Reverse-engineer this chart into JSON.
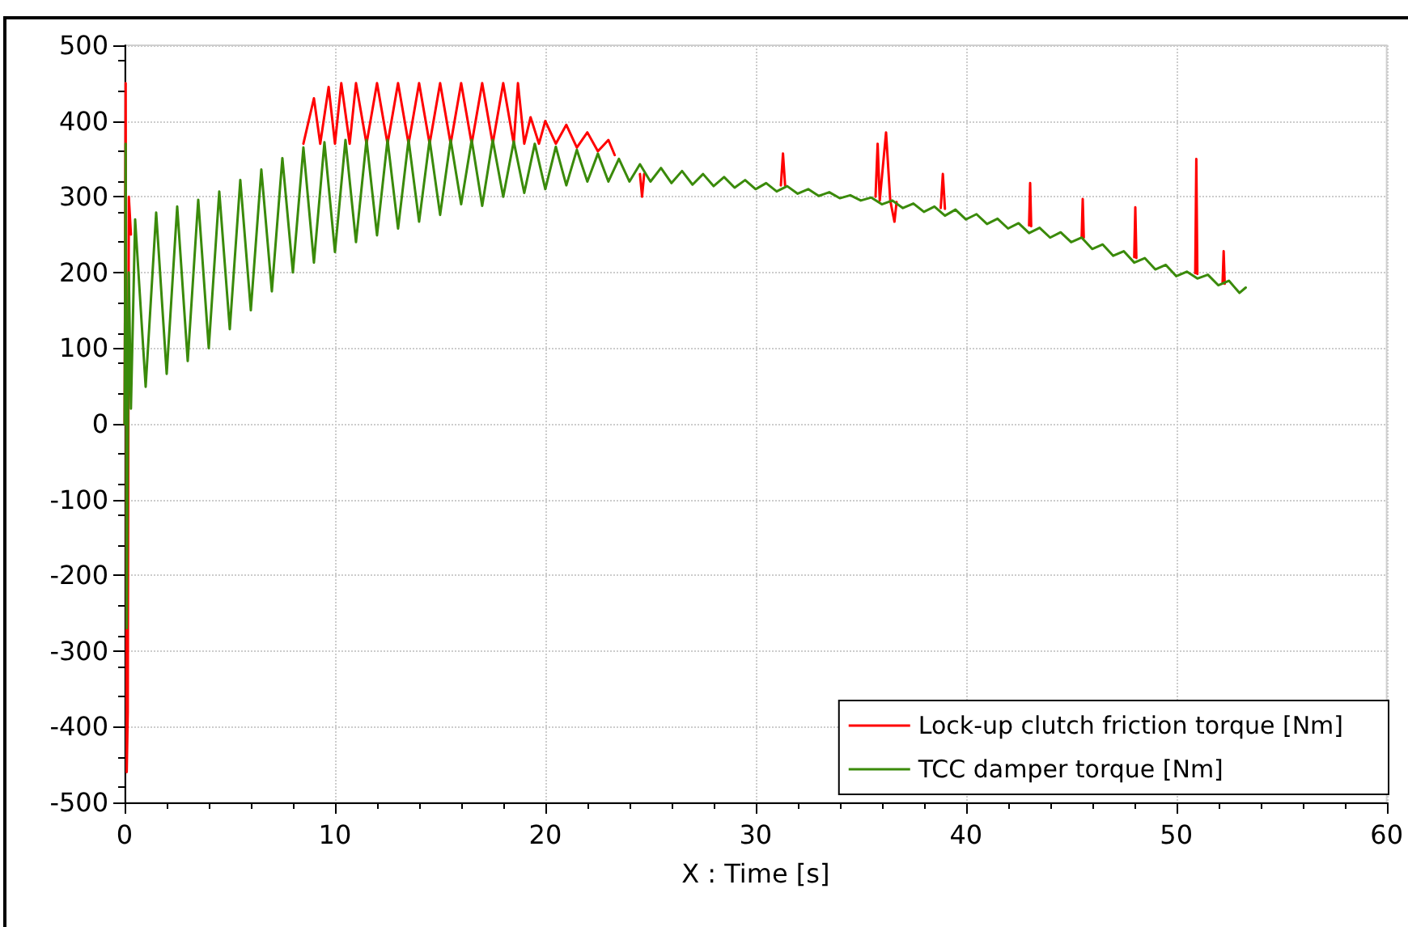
{
  "chart_data": {
    "type": "line",
    "xlabel": "X : Time [s]",
    "xlim": [
      0,
      60
    ],
    "xticks": [
      0,
      10,
      20,
      30,
      40,
      50,
      60
    ],
    "ylim": [
      -500,
      500
    ],
    "yticks": [
      -500,
      -400,
      -300,
      -200,
      -100,
      0,
      100,
      200,
      300,
      400,
      500
    ],
    "grid": true,
    "legend": "bottom right",
    "marker": "none",
    "line_style": "solid",
    "series": [
      {
        "name": "Lock-up clutch friction torque [Nm]",
        "color": "#ff0000",
        "x": [
          0,
          0.05,
          0.1,
          0.15,
          0.2,
          0.3,
          4,
          8.5,
          9,
          9.3,
          9.7,
          10,
          10.3,
          10.7,
          11,
          11.5,
          12,
          12.5,
          13,
          13.5,
          14,
          14.5,
          15,
          15.5,
          16,
          16.5,
          17,
          17.5,
          18,
          18.5,
          18.7,
          19,
          19.3,
          19.7,
          20,
          20.5,
          21,
          21.5,
          22,
          22.5,
          23,
          23.3,
          24,
          24.5,
          24.6,
          24.7,
          28,
          31.2,
          31.3,
          31.4,
          33,
          35.7,
          35.8,
          35.9,
          36.2,
          36.4,
          36.6,
          36.7,
          38,
          38.8,
          38.9,
          39,
          41,
          43,
          43.05,
          43.1,
          44,
          45.5,
          45.55,
          45.6,
          47,
          48,
          48.05,
          48.1,
          49,
          50.9,
          50.95,
          51,
          51.5,
          52.2,
          52.25,
          52.3
        ],
        "values": [
          0,
          450,
          -460,
          -380,
          300,
          250,
          null,
          370,
          430,
          370,
          445,
          370,
          450,
          370,
          450,
          370,
          450,
          370,
          450,
          370,
          450,
          370,
          450,
          370,
          450,
          370,
          450,
          370,
          450,
          370,
          450,
          370,
          405,
          370,
          400,
          370,
          395,
          365,
          385,
          360,
          375,
          355,
          null,
          330,
          300,
          330,
          null,
          315,
          357,
          315,
          null,
          300,
          370,
          295,
          385,
          295,
          267,
          293,
          null,
          285,
          330,
          284,
          null,
          262,
          318,
          261,
          null,
          247,
          297,
          246,
          null,
          220,
          286,
          219,
          null,
          199,
          350,
          198,
          null,
          186,
          228,
          185
        ]
      },
      {
        "name": "TCC damper torque [Nm]",
        "color": "#3a8a0a",
        "x": [
          0,
          0.05,
          0.1,
          0.2,
          0.3,
          0.5,
          1,
          1.5,
          2,
          2.5,
          3,
          3.5,
          4,
          4.5,
          5,
          5.5,
          6,
          6.5,
          7,
          7.5,
          8,
          8.5,
          9,
          9.5,
          10,
          10.5,
          11,
          11.5,
          12,
          12.5,
          13,
          13.5,
          14,
          14.5,
          15,
          15.5,
          16,
          16.5,
          17,
          17.5,
          18,
          18.5,
          19,
          19.5,
          20,
          20.5,
          21,
          21.5,
          22,
          22.5,
          23,
          23.5,
          24,
          24.5,
          25,
          25.5,
          26,
          26.5,
          27,
          27.5,
          28,
          28.5,
          29,
          29.5,
          30,
          30.5,
          31,
          31.5,
          32,
          32.5,
          33,
          33.5,
          34,
          34.5,
          35,
          35.5,
          36,
          36.5,
          37,
          37.5,
          38,
          38.5,
          39,
          39.5,
          40,
          40.5,
          41,
          41.5,
          42,
          42.5,
          43,
          43.5,
          44,
          44.5,
          45,
          45.5,
          46,
          46.5,
          47,
          47.5,
          48,
          48.5,
          49,
          49.5,
          50,
          50.5,
          51,
          51.5,
          52,
          52.5,
          53,
          53.3
        ],
        "values": [
          0,
          370,
          -270,
          200,
          20,
          270,
          49,
          279,
          66,
          287,
          83,
          296,
          100,
          307,
          125,
          322,
          150,
          336,
          175,
          351,
          200,
          365,
          213,
          372,
          227,
          375,
          240,
          375,
          249,
          375,
          258,
          375,
          267,
          375,
          276,
          375,
          290,
          375,
          288,
          375,
          300,
          373,
          305,
          370,
          310,
          366,
          315,
          362,
          320,
          357,
          320,
          350,
          320,
          343,
          320,
          338,
          318,
          334,
          316,
          330,
          314,
          326,
          312,
          322,
          310,
          318,
          307,
          314,
          304,
          310,
          301,
          306,
          298,
          302,
          295,
          299,
          290,
          295,
          285,
          291,
          280,
          287,
          275,
          283,
          270,
          277,
          264,
          271,
          258,
          265,
          252,
          259,
          246,
          253,
          240,
          246,
          231,
          237,
          222,
          228,
          213,
          219,
          204,
          210,
          195,
          201,
          192,
          197,
          183,
          189,
          173,
          180
        ]
      }
    ]
  }
}
